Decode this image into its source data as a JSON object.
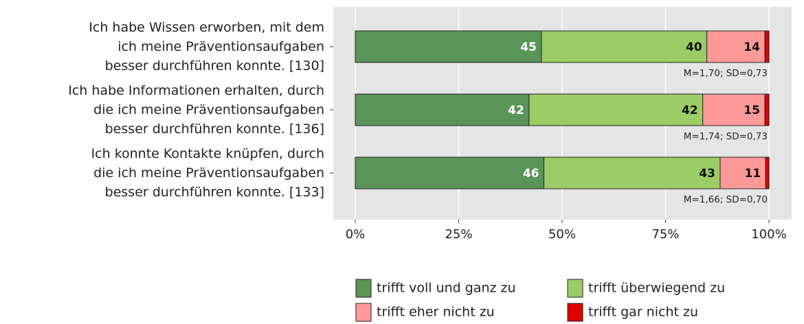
{
  "chart_data": {
    "type": "stacked-barh",
    "categories": [
      [
        "Ich habe Wissen erworben, mit dem",
        "ich meine Präventionsaufgaben",
        "besser durchführen konnte. [130]"
      ],
      [
        "Ich habe Informationen erhalten, durch",
        "die ich meine Präventionsaufgaben",
        "besser durchführen konnte. [136]"
      ],
      [
        "Ich konnte Kontakte knüpfen, durch",
        "die ich meine Präventionsaufgaben",
        "besser durchführen konnte. [133]"
      ]
    ],
    "series": [
      {
        "name": "trifft voll und ganz zu",
        "color": "#5a9458",
        "values": [
          45,
          42,
          45.6
        ],
        "value_labels": [
          "45",
          "42",
          "46"
        ]
      },
      {
        "name": "trifft überwiegend zu",
        "color": "#9ccc66",
        "values": [
          40,
          42,
          42.6
        ],
        "value_labels": [
          "40",
          "42",
          "43"
        ]
      },
      {
        "name": "trifft eher nicht zu",
        "color": "#ff9999",
        "values": [
          14,
          15,
          11
        ],
        "value_labels": [
          "14",
          "15",
          "11"
        ]
      },
      {
        "name": "trifft gar nicht zu",
        "color": "#e00000",
        "values": [
          1,
          1,
          0.8
        ]
      }
    ],
    "annotations": [
      "M=1,70; SD=0,73",
      "M=1,74; SD=0,73",
      "M=1,66; SD=0,70"
    ],
    "xlim": [
      0,
      100
    ],
    "xticks": [
      {
        "value": 0,
        "label": "0%"
      },
      {
        "value": 25,
        "label": "25%"
      },
      {
        "value": 50,
        "label": "50%"
      },
      {
        "value": 75,
        "label": "75%"
      },
      {
        "value": 100,
        "label": "100%"
      }
    ],
    "grid": true,
    "legend": "bottom"
  }
}
